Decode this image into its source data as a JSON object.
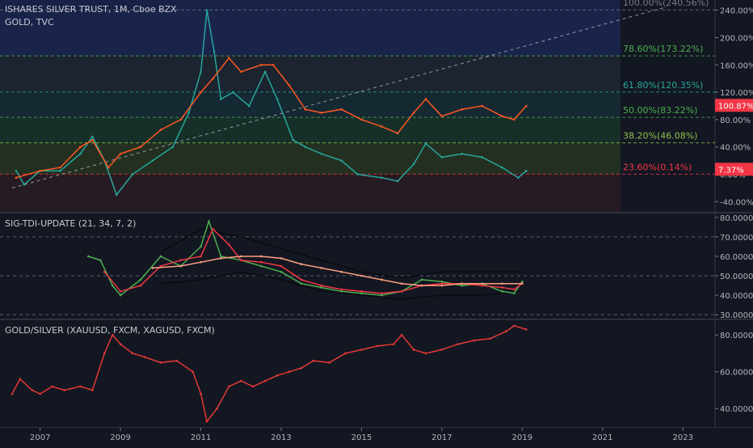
{
  "panel1": {
    "title": "ISHARES SILVER TRUST, 1M, Cboe BZX",
    "overlay": "GOLD, TVC",
    "y_ticks": [
      "240.00%",
      "200.00%",
      "160.00%",
      "120.00%",
      "80.00%",
      "40.00%",
      "0.00%",
      "-40.00%"
    ],
    "y_tick_values": [
      240,
      200,
      160,
      120,
      80,
      40,
      0,
      -40
    ],
    "price_badges": [
      {
        "text": "100.87%",
        "value": 100.87,
        "color": "#f23645"
      },
      {
        "text": "7.37%",
        "value": 7.37,
        "color": "#f23645"
      }
    ],
    "fib_levels": [
      {
        "label": "100.00%(240.56%)",
        "value": 240.56,
        "color": "#787b86",
        "band": "#1e2a5a"
      },
      {
        "label": "78.60%(173.22%)",
        "value": 173.22,
        "color": "#4caf50",
        "band": "#1f2a34"
      },
      {
        "label": "61.80%(120.35%)",
        "value": 120.35,
        "color": "#26a69a",
        "band": "#17303a"
      },
      {
        "label": "50.00%(83.22%)",
        "value": 83.22,
        "color": "#4caf50",
        "band": "#183a2c"
      },
      {
        "label": "38.20%(46.08%)",
        "value": 46.08,
        "color": "#8bc34a",
        "band": "#2a3a22"
      },
      {
        "label": "23.60%(0.14%)",
        "value": 0.14,
        "color": "#f23645",
        "band": "#2e2a2a"
      }
    ]
  },
  "panel2": {
    "title": "SIG-TDI-UPDATE (21, 34, 7, 2)",
    "y_ticks": [
      "80.0000",
      "70.0000",
      "60.0000",
      "50.0000",
      "40.0000",
      "30.0000"
    ],
    "y_tick_values": [
      80,
      70,
      60,
      50,
      40,
      30
    ]
  },
  "panel3": {
    "title": "GOLD/SILVER (XAUUSD, FXCM, XAGUSD, FXCM)",
    "y_ticks": [
      "80.0000",
      "60.0000",
      "40.0000"
    ],
    "y_tick_values": [
      80,
      60,
      40
    ]
  },
  "x_ticks": [
    "2007",
    "2009",
    "2011",
    "2013",
    "2015",
    "2017",
    "2019",
    "2021",
    "2023"
  ],
  "chart_data": [
    {
      "type": "line",
      "title": "ISHARES SILVER TRUST, 1M, Cboe BZX",
      "xlim": [
        2006.0,
        2023.8
      ],
      "ylim": [
        -55,
        255
      ],
      "series": [
        {
          "name": "ISHARES SILVER TRUST",
          "color": "#26a69a",
          "x": [
            2006.4,
            2006.6,
            2007.0,
            2007.5,
            2008.0,
            2008.3,
            2008.6,
            2008.9,
            2009.3,
            2009.8,
            2010.3,
            2010.7,
            2011.0,
            2011.15,
            2011.33,
            2011.5,
            2011.8,
            2012.2,
            2012.6,
            2012.9,
            2013.3,
            2013.6,
            2014.0,
            2014.5,
            2014.9,
            2015.5,
            2015.9,
            2016.3,
            2016.6,
            2017.0,
            2017.5,
            2018.0,
            2018.5,
            2018.9,
            2019.1
          ],
          "y": [
            5,
            -15,
            5,
            5,
            30,
            55,
            20,
            -30,
            0,
            20,
            40,
            90,
            150,
            240,
            180,
            110,
            120,
            100,
            150,
            110,
            50,
            40,
            30,
            20,
            0,
            -5,
            -10,
            15,
            45,
            25,
            30,
            25,
            10,
            -5,
            5
          ]
        },
        {
          "name": "GOLD, TVC",
          "color": "#ff5722",
          "x": [
            2006.4,
            2007.0,
            2007.5,
            2008.0,
            2008.3,
            2008.7,
            2009.0,
            2009.5,
            2010.0,
            2010.5,
            2011.0,
            2011.3,
            2011.7,
            2012.0,
            2012.5,
            2012.8,
            2013.2,
            2013.6,
            2014.0,
            2014.5,
            2015.0,
            2015.5,
            2015.9,
            2016.3,
            2016.6,
            2017.0,
            2017.5,
            2018.0,
            2018.5,
            2018.8,
            2019.1
          ],
          "y": [
            -5,
            5,
            10,
            40,
            50,
            10,
            30,
            40,
            65,
            80,
            120,
            140,
            170,
            150,
            160,
            160,
            130,
            95,
            90,
            95,
            80,
            70,
            60,
            90,
            110,
            85,
            95,
            100,
            85,
            80,
            100
          ]
        }
      ]
    },
    {
      "type": "line",
      "title": "SIG-TDI-UPDATE (21, 34, 7, 2)",
      "xlim": [
        2006.0,
        2023.8
      ],
      "ylim": [
        28,
        82
      ],
      "series": [
        {
          "name": "",
          "color": "#4caf50",
          "x": [
            2008.2,
            2008.5,
            2008.8,
            2009.0,
            2009.5,
            2010.0,
            2010.5,
            2011.0,
            2011.2,
            2011.5,
            2012.0,
            2012.5,
            2013.0,
            2013.5,
            2014.0,
            2014.5,
            2015.0,
            2015.5,
            2016.0,
            2016.5,
            2017.0,
            2017.5,
            2018.0,
            2018.5,
            2018.8,
            2019.0
          ],
          "y": [
            60,
            58,
            45,
            40,
            48,
            60,
            55,
            65,
            78,
            60,
            58,
            55,
            52,
            46,
            44,
            42,
            41,
            40,
            42,
            48,
            47,
            45,
            46,
            42,
            41,
            47
          ]
        },
        {
          "name": "",
          "color": "#f23645",
          "x": [
            2008.6,
            2009.0,
            2009.5,
            2010.0,
            2010.5,
            2011.0,
            2011.3,
            2011.7,
            2012.0,
            2012.5,
            2013.0,
            2013.5,
            2014.0,
            2014.5,
            2015.0,
            2015.5,
            2016.0,
            2016.5,
            2017.0,
            2017.5,
            2018.0,
            2018.5,
            2018.8,
            2019.0
          ],
          "y": [
            52,
            42,
            45,
            55,
            58,
            60,
            74,
            66,
            58,
            57,
            55,
            48,
            45,
            43,
            42,
            41,
            42,
            45,
            46,
            46,
            45,
            44,
            43,
            46
          ]
        },
        {
          "name": "",
          "color": "#ff9e80",
          "x": [
            2009.8,
            2010.5,
            2011.0,
            2011.5,
            2012.0,
            2012.5,
            2013.0,
            2013.5,
            2014.0,
            2014.5,
            2015.0,
            2015.5,
            2016.0,
            2016.5,
            2017.0,
            2017.5,
            2018.0,
            2018.5,
            2019.0
          ],
          "y": [
            54,
            55,
            57,
            59,
            60,
            60,
            59,
            56,
            54,
            52,
            50,
            48,
            46,
            45,
            45,
            46,
            46,
            46,
            46
          ]
        }
      ]
    },
    {
      "type": "line",
      "title": "GOLD/SILVER (XAUUSD, FXCM, XAGUSD, FXCM)",
      "xlim": [
        2006.0,
        2023.8
      ],
      "ylim": [
        30,
        88
      ],
      "series": [
        {
          "name": "GOLD/SILVER",
          "color": "#e53935",
          "x": [
            2006.3,
            2006.5,
            2006.8,
            2007.0,
            2007.3,
            2007.6,
            2008.0,
            2008.3,
            2008.6,
            2008.8,
            2009.0,
            2009.3,
            2009.6,
            2010.0,
            2010.4,
            2010.8,
            2011.0,
            2011.15,
            2011.4,
            2011.7,
            2012.0,
            2012.3,
            2012.6,
            2012.9,
            2013.2,
            2013.5,
            2013.8,
            2014.2,
            2014.6,
            2015.0,
            2015.4,
            2015.8,
            2016.0,
            2016.3,
            2016.6,
            2017.0,
            2017.4,
            2017.8,
            2018.2,
            2018.6,
            2018.8,
            2019.1
          ],
          "y": [
            48,
            56,
            50,
            48,
            52,
            50,
            52,
            50,
            70,
            80,
            75,
            70,
            68,
            65,
            66,
            60,
            48,
            33,
            40,
            52,
            55,
            52,
            55,
            58,
            60,
            62,
            66,
            65,
            70,
            72,
            74,
            75,
            80,
            72,
            70,
            72,
            75,
            77,
            78,
            82,
            85,
            83
          ]
        }
      ]
    }
  ]
}
